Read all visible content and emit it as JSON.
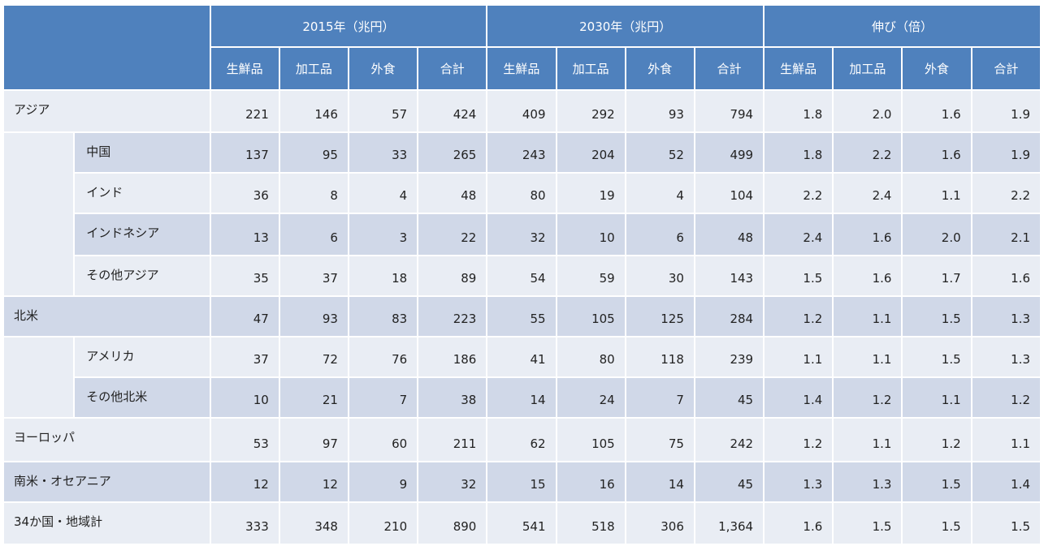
{
  "header": {
    "groups": [
      "2015年（兆円）",
      "2030年（兆円）",
      "伸び（倍）"
    ],
    "subs": [
      "生鮮品",
      "加工品",
      "外食",
      "合計"
    ]
  },
  "rows": [
    {
      "label": "アジア",
      "values": [
        "221",
        "146",
        "57",
        "424",
        "409",
        "292",
        "93",
        "794",
        "1.8",
        "2.0",
        "1.6",
        "1.9"
      ]
    },
    {
      "label": "中国",
      "values": [
        "137",
        "95",
        "33",
        "265",
        "243",
        "204",
        "52",
        "499",
        "1.8",
        "2.2",
        "1.6",
        "1.9"
      ]
    },
    {
      "label": "インド",
      "values": [
        "36",
        "8",
        "4",
        "48",
        "80",
        "19",
        "4",
        "104",
        "2.2",
        "2.4",
        "1.1",
        "2.2"
      ]
    },
    {
      "label": "インドネシア",
      "values": [
        "13",
        "6",
        "3",
        "22",
        "32",
        "10",
        "6",
        "48",
        "2.4",
        "1.6",
        "2.0",
        "2.1"
      ]
    },
    {
      "label": "その他アジア",
      "values": [
        "35",
        "37",
        "18",
        "89",
        "54",
        "59",
        "30",
        "143",
        "1.5",
        "1.6",
        "1.7",
        "1.6"
      ]
    },
    {
      "label": "北米",
      "values": [
        "47",
        "93",
        "83",
        "223",
        "55",
        "105",
        "125",
        "284",
        "1.2",
        "1.1",
        "1.5",
        "1.3"
      ]
    },
    {
      "label": "アメリカ",
      "values": [
        "37",
        "72",
        "76",
        "186",
        "41",
        "80",
        "118",
        "239",
        "1.1",
        "1.1",
        "1.5",
        "1.3"
      ]
    },
    {
      "label": "その他北米",
      "values": [
        "10",
        "21",
        "7",
        "38",
        "14",
        "24",
        "7",
        "45",
        "1.4",
        "1.2",
        "1.1",
        "1.2"
      ]
    },
    {
      "label": "ヨーロッパ",
      "values": [
        "53",
        "97",
        "60",
        "211",
        "62",
        "105",
        "75",
        "242",
        "1.2",
        "1.1",
        "1.2",
        "1.1"
      ]
    },
    {
      "label": "南米・オセアニア",
      "values": [
        "12",
        "12",
        "9",
        "32",
        "15",
        "16",
        "14",
        "45",
        "1.3",
        "1.3",
        "1.5",
        "1.4"
      ]
    },
    {
      "label": "34か国・地域計",
      "values": [
        "333",
        "348",
        "210",
        "890",
        "541",
        "518",
        "306",
        "1,364",
        "1.6",
        "1.5",
        "1.5",
        "1.5"
      ]
    }
  ]
}
